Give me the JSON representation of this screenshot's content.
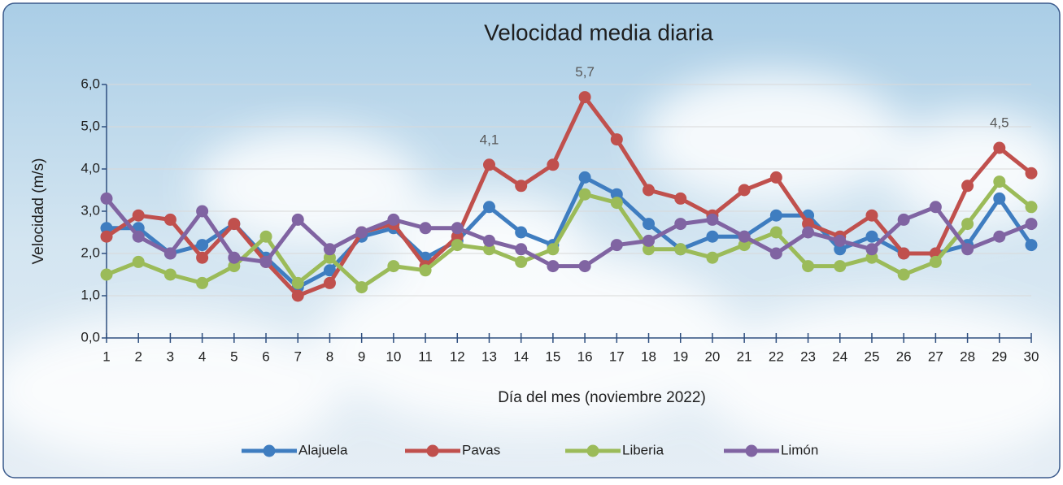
{
  "chart_data": {
    "type": "line",
    "title": "Velocidad media diaria",
    "x_label": "Día del mes (noviembre 2022)",
    "y_label": "Velocidad  (m/s)",
    "categories": [
      "1",
      "2",
      "3",
      "4",
      "5",
      "6",
      "7",
      "8",
      "9",
      "10",
      "11",
      "12",
      "13",
      "14",
      "15",
      "16",
      "17",
      "18",
      "19",
      "20",
      "21",
      "22",
      "23",
      "24",
      "25",
      "26",
      "27",
      "28",
      "29",
      "30"
    ],
    "ylim": [
      0,
      6
    ],
    "yticks": [
      {
        "value": 0,
        "label": "0,0"
      },
      {
        "value": 1,
        "label": "1,0"
      },
      {
        "value": 2,
        "label": "2,0"
      },
      {
        "value": 3,
        "label": "3,0"
      },
      {
        "value": 4,
        "label": "4,0"
      },
      {
        "value": 5,
        "label": "5,0"
      },
      {
        "value": 6,
        "label": "6,0"
      }
    ],
    "grid": true,
    "legend": "bottom",
    "series": [
      {
        "name": "Alajuela",
        "color": "#3f7dc0",
        "values": [
          2.6,
          2.6,
          2.0,
          2.2,
          2.7,
          1.9,
          1.2,
          1.6,
          2.4,
          2.6,
          1.9,
          2.3,
          3.1,
          2.5,
          2.2,
          3.8,
          3.4,
          2.7,
          2.1,
          2.4,
          2.4,
          2.9,
          2.9,
          2.1,
          2.4,
          2.0,
          2.0,
          2.2,
          3.3,
          2.2
        ]
      },
      {
        "name": "Pavas",
        "color": "#c0504d",
        "values": [
          2.4,
          2.9,
          2.8,
          1.9,
          2.7,
          1.8,
          1.0,
          1.3,
          2.5,
          2.7,
          1.7,
          2.4,
          4.1,
          3.6,
          4.1,
          5.7,
          4.7,
          3.5,
          3.3,
          2.9,
          3.5,
          3.8,
          2.7,
          2.4,
          2.9,
          2.0,
          2.0,
          3.6,
          4.5,
          3.9
        ],
        "value_labels": [
          null,
          null,
          null,
          null,
          null,
          null,
          null,
          null,
          null,
          null,
          null,
          null,
          "4,1",
          null,
          null,
          "5,7",
          null,
          null,
          null,
          null,
          null,
          null,
          null,
          null,
          null,
          null,
          null,
          null,
          "4,5",
          null
        ]
      },
      {
        "name": "Liberia",
        "color": "#9bbb59",
        "values": [
          1.5,
          1.8,
          1.5,
          1.3,
          1.7,
          2.4,
          1.3,
          1.9,
          1.2,
          1.7,
          1.6,
          2.2,
          2.1,
          1.8,
          2.1,
          3.4,
          3.2,
          2.1,
          2.1,
          1.9,
          2.2,
          2.5,
          1.7,
          1.7,
          1.9,
          1.5,
          1.8,
          2.7,
          3.7,
          3.1
        ]
      },
      {
        "name": "Limón",
        "color": "#8064a2",
        "values": [
          3.3,
          2.4,
          2.0,
          3.0,
          1.9,
          1.8,
          2.8,
          2.1,
          2.5,
          2.8,
          2.6,
          2.6,
          2.3,
          2.1,
          1.7,
          1.7,
          2.2,
          2.3,
          2.7,
          2.8,
          2.4,
          2.0,
          2.5,
          2.3,
          2.1,
          2.8,
          3.1,
          2.1,
          2.4,
          2.7
        ]
      }
    ]
  }
}
